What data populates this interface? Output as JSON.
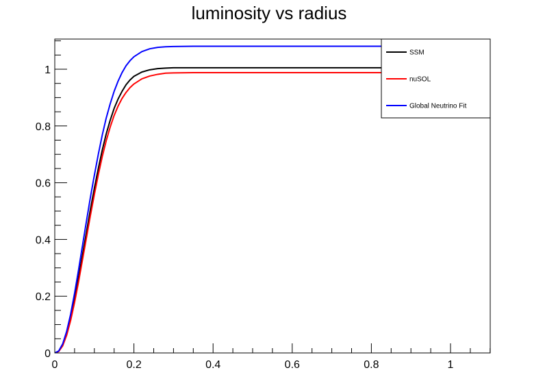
{
  "chart_data": {
    "type": "line",
    "title": "luminosity vs radius",
    "xlabel": "",
    "ylabel": "",
    "xlim": [
      0,
      1.1
    ],
    "ylim": [
      0,
      1.1
    ],
    "x_ticks": [
      {
        "value": 0,
        "label": "0"
      },
      {
        "value": 0.2,
        "label": "0.2"
      },
      {
        "value": 0.4,
        "label": "0.4"
      },
      {
        "value": 0.6,
        "label": "0.6"
      },
      {
        "value": 0.8,
        "label": "0.8"
      },
      {
        "value": 1.0,
        "label": "1"
      }
    ],
    "y_ticks": [
      {
        "value": 0,
        "label": "0"
      },
      {
        "value": 0.2,
        "label": "0.2"
      },
      {
        "value": 0.4,
        "label": "0.4"
      },
      {
        "value": 0.6,
        "label": "0.6"
      },
      {
        "value": 0.8,
        "label": "0.8"
      },
      {
        "value": 1.0,
        "label": "1"
      }
    ],
    "x_minor_step": 0.05,
    "y_minor_step": 0.05,
    "grid": false,
    "legend_position": "top-right",
    "series": [
      {
        "name": "SSM",
        "color": "#000000",
        "x": [
          0,
          0.01,
          0.02,
          0.03,
          0.04,
          0.05,
          0.06,
          0.07,
          0.08,
          0.09,
          0.1,
          0.11,
          0.12,
          0.13,
          0.14,
          0.15,
          0.16,
          0.17,
          0.18,
          0.19,
          0.2,
          0.22,
          0.24,
          0.26,
          0.28,
          0.3,
          0.35,
          0.4,
          0.5,
          0.6,
          0.7,
          0.8,
          0.9,
          1.0
        ],
        "y": [
          0,
          0.006,
          0.028,
          0.068,
          0.122,
          0.19,
          0.265,
          0.345,
          0.425,
          0.505,
          0.58,
          0.65,
          0.715,
          0.772,
          0.82,
          0.862,
          0.895,
          0.922,
          0.945,
          0.962,
          0.975,
          0.99,
          0.998,
          1.002,
          1.004,
          1.005,
          1.005,
          1.005,
          1.005,
          1.005,
          1.005,
          1.005,
          1.005,
          1.005
        ]
      },
      {
        "name": "nuSOL",
        "color": "#ff0000",
        "x": [
          0,
          0.01,
          0.02,
          0.03,
          0.04,
          0.05,
          0.06,
          0.07,
          0.08,
          0.09,
          0.1,
          0.11,
          0.12,
          0.13,
          0.14,
          0.15,
          0.16,
          0.17,
          0.18,
          0.19,
          0.2,
          0.22,
          0.24,
          0.26,
          0.28,
          0.3,
          0.35,
          0.4,
          0.5,
          0.6,
          0.7,
          0.8,
          0.9,
          1.0
        ],
        "y": [
          0,
          0.005,
          0.025,
          0.062,
          0.114,
          0.178,
          0.25,
          0.328,
          0.406,
          0.484,
          0.558,
          0.628,
          0.692,
          0.748,
          0.796,
          0.837,
          0.87,
          0.897,
          0.918,
          0.935,
          0.948,
          0.966,
          0.976,
          0.982,
          0.986,
          0.987,
          0.988,
          0.988,
          0.988,
          0.988,
          0.988,
          0.988,
          0.988,
          0.988
        ]
      },
      {
        "name": "Global Neutrino Fit",
        "color": "#0000ff",
        "x": [
          0,
          0.01,
          0.02,
          0.03,
          0.04,
          0.05,
          0.06,
          0.07,
          0.08,
          0.09,
          0.1,
          0.11,
          0.12,
          0.13,
          0.14,
          0.15,
          0.16,
          0.17,
          0.18,
          0.19,
          0.2,
          0.22,
          0.24,
          0.26,
          0.28,
          0.3,
          0.35,
          0.4,
          0.5,
          0.6,
          0.7,
          0.8,
          0.9,
          1.0
        ],
        "y": [
          0,
          0.007,
          0.032,
          0.076,
          0.136,
          0.21,
          0.292,
          0.378,
          0.464,
          0.548,
          0.626,
          0.7,
          0.768,
          0.828,
          0.878,
          0.922,
          0.958,
          0.988,
          1.012,
          1.03,
          1.044,
          1.062,
          1.072,
          1.077,
          1.079,
          1.08,
          1.081,
          1.081,
          1.081,
          1.081,
          1.081,
          1.081,
          1.081,
          1.081
        ]
      }
    ]
  }
}
